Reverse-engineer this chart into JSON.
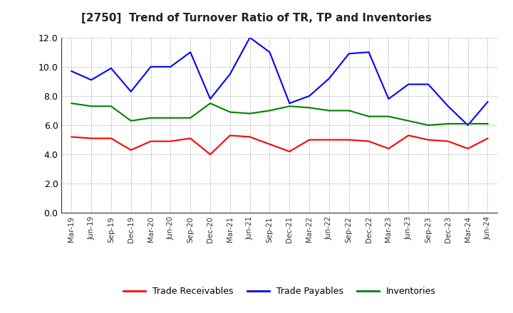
{
  "title": "[2750]  Trend of Turnover Ratio of TR, TP and Inventories",
  "x_labels": [
    "Mar-19",
    "Jun-19",
    "Sep-19",
    "Dec-19",
    "Mar-20",
    "Jun-20",
    "Sep-20",
    "Dec-20",
    "Mar-21",
    "Jun-21",
    "Sep-21",
    "Dec-21",
    "Mar-22",
    "Jun-22",
    "Sep-22",
    "Dec-22",
    "Mar-23",
    "Jun-23",
    "Sep-23",
    "Dec-23",
    "Mar-24",
    "Jun-24"
  ],
  "trade_receivables": [
    5.2,
    5.1,
    5.1,
    4.3,
    4.9,
    4.9,
    5.1,
    4.0,
    5.3,
    5.2,
    4.7,
    4.2,
    5.0,
    5.0,
    5.0,
    4.9,
    4.4,
    5.3,
    5.0,
    4.9,
    4.4,
    5.1
  ],
  "trade_payables": [
    9.7,
    9.1,
    9.9,
    8.3,
    10.0,
    10.0,
    11.0,
    7.8,
    9.5,
    12.0,
    11.0,
    7.5,
    8.0,
    9.2,
    10.9,
    11.0,
    7.8,
    8.8,
    8.8,
    7.3,
    6.0,
    7.6
  ],
  "inventories": [
    7.5,
    7.3,
    7.3,
    6.3,
    6.5,
    6.5,
    6.5,
    7.5,
    6.9,
    6.8,
    7.0,
    7.3,
    7.2,
    7.0,
    7.0,
    6.6,
    6.6,
    6.3,
    6.0,
    6.1,
    6.1,
    6.1
  ],
  "ylim": [
    0.0,
    12.0
  ],
  "yticks": [
    0.0,
    2.0,
    4.0,
    6.0,
    8.0,
    10.0,
    12.0
  ],
  "color_tr": "#ff0000",
  "color_tp": "#0000ff",
  "color_inv": "#008000",
  "legend_labels": [
    "Trade Receivables",
    "Trade Payables",
    "Inventories"
  ],
  "background_color": "#ffffff",
  "plot_bg_color": "#ffffff"
}
